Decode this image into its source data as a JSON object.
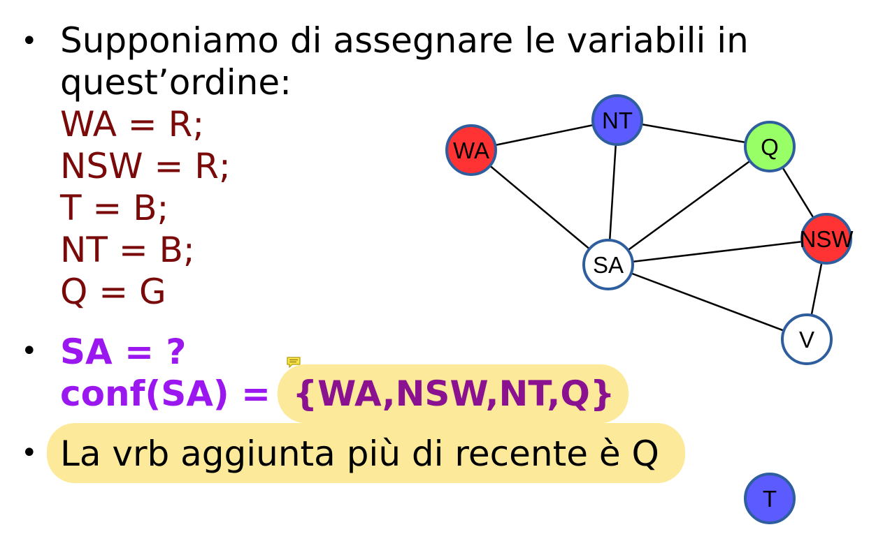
{
  "bullets": {
    "b1_line1": "Supponiamo di assegnare le variabili in",
    "b1_line2": "quest’ordine:",
    "assignments": [
      "WA = R;",
      "NSW = R;",
      "T = B;",
      "NT = B;",
      "Q = G"
    ],
    "b2_line1": "SA = ?",
    "b2_conf_label": "conf(SA) = ",
    "b2_conf_set": "{WA,NSW,NT,Q}",
    "b3": "La vrb aggiunta più di recente è Q"
  },
  "graph": {
    "nodes": [
      {
        "id": "WA",
        "label": "WA",
        "color": "#ff3333"
      },
      {
        "id": "NT",
        "label": "NT",
        "color": "#5b5bff"
      },
      {
        "id": "Q",
        "label": "Q",
        "color": "#99ff66"
      },
      {
        "id": "NSW",
        "label": "NSW",
        "color": "#ff3333"
      },
      {
        "id": "SA",
        "label": "SA",
        "color": "#ffffff"
      },
      {
        "id": "V",
        "label": "V",
        "color": "#ffffff"
      },
      {
        "id": "T",
        "label": "T",
        "color": "#5b5bff"
      }
    ],
    "edges": [
      [
        "WA",
        "NT"
      ],
      [
        "WA",
        "SA"
      ],
      [
        "NT",
        "Q"
      ],
      [
        "NT",
        "SA"
      ],
      [
        "Q",
        "SA"
      ],
      [
        "Q",
        "NSW"
      ],
      [
        "SA",
        "NSW"
      ],
      [
        "SA",
        "V"
      ],
      [
        "NSW",
        "V"
      ]
    ]
  },
  "colors": {
    "highlight": "#fde99a",
    "node_stroke": "#2e5e9e",
    "assignment_text": "#7a0a0a",
    "question_text": "#9b17f0",
    "set_text": "#8a1190"
  }
}
